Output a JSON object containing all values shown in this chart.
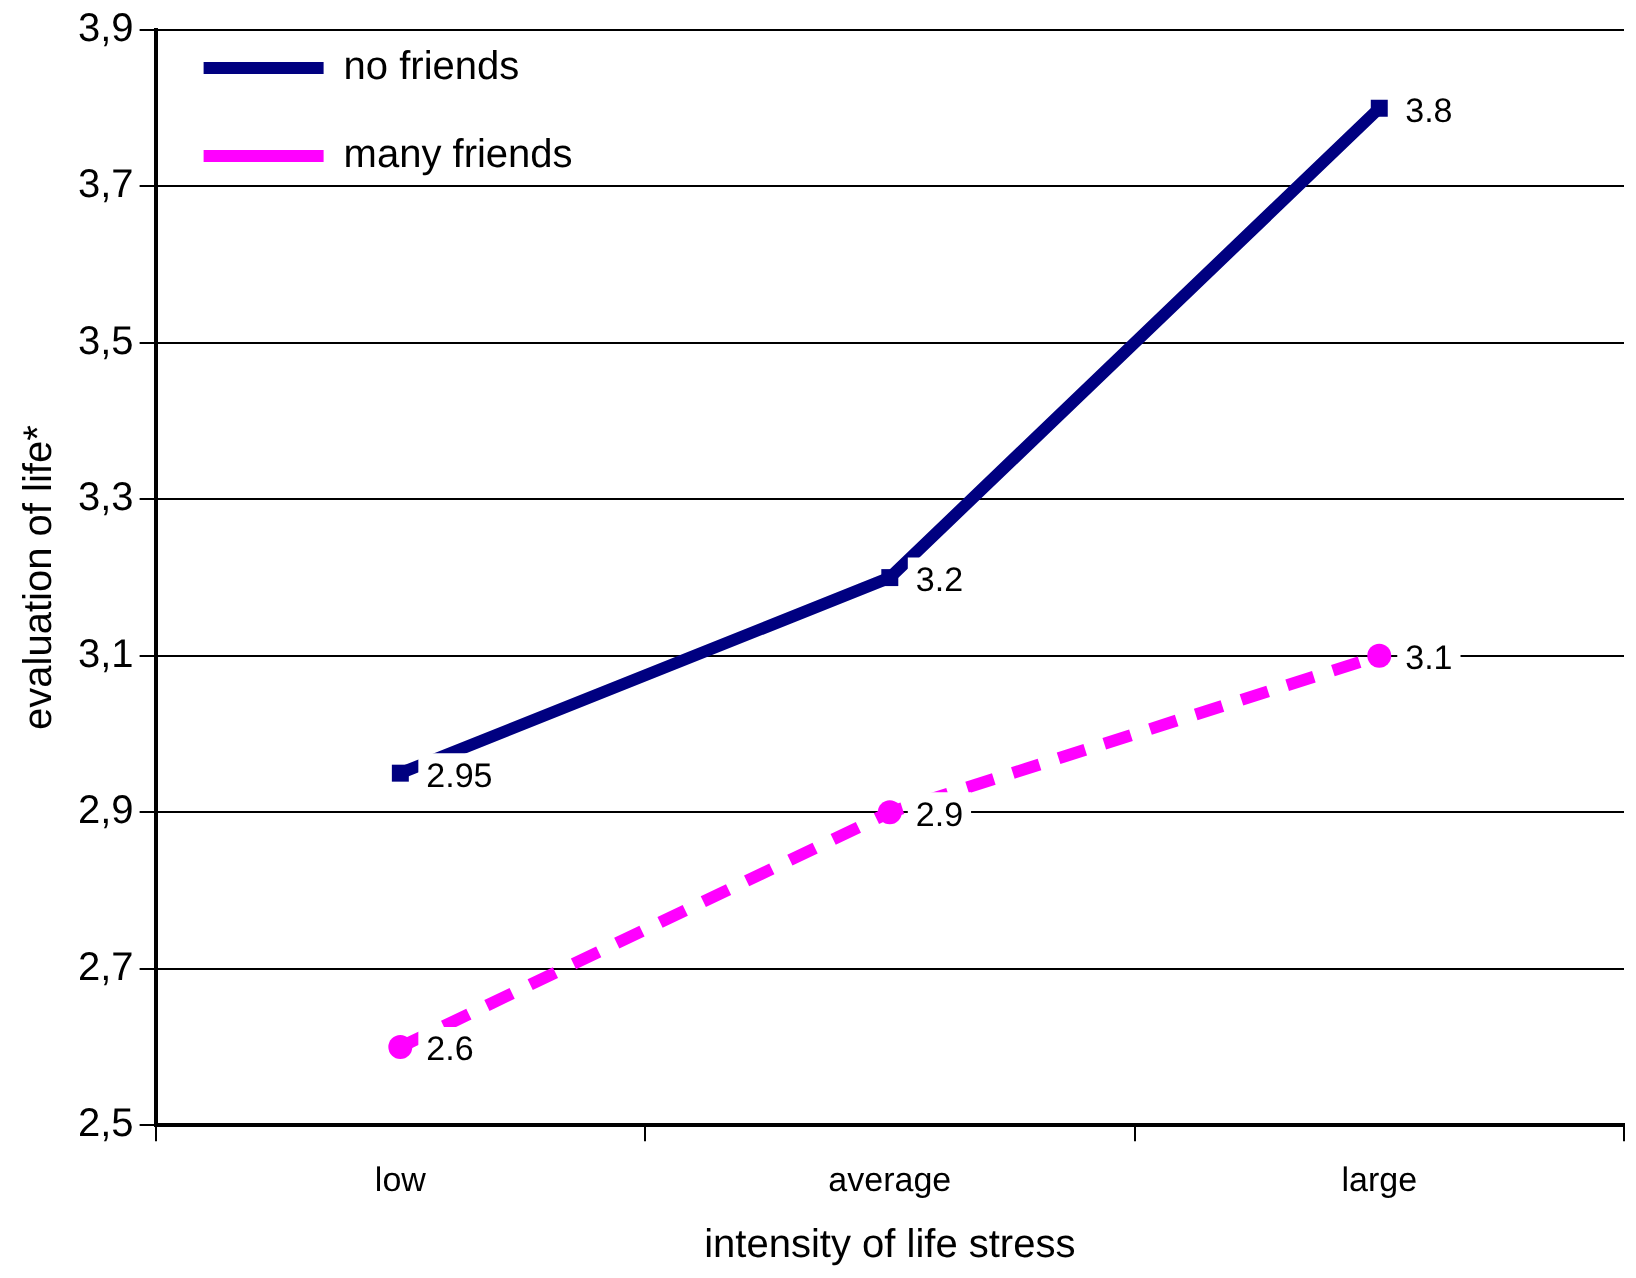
{
  "chart_data": {
    "type": "line",
    "xlabel": "intensity of life stress",
    "ylabel": "evaluation of life*",
    "categories": [
      "low",
      "average",
      "large"
    ],
    "series": [
      {
        "name": "no friends",
        "color": "#000080",
        "values": [
          2.95,
          3.2,
          3.8
        ],
        "marker": "square",
        "line_style": "solid"
      },
      {
        "name": "many friends",
        "color": "#ff00ff",
        "values": [
          2.6,
          2.9,
          3.1
        ],
        "marker": "circle",
        "line_style": "dashed"
      }
    ],
    "ylim": [
      2.5,
      3.9
    ],
    "yticks": [
      {
        "value": 2.5,
        "label": "2,5"
      },
      {
        "value": 2.7,
        "label": "2,7"
      },
      {
        "value": 2.9,
        "label": "2,9"
      },
      {
        "value": 3.1,
        "label": "3,1"
      },
      {
        "value": 3.3,
        "label": "3,3"
      },
      {
        "value": 3.5,
        "label": "3,5"
      },
      {
        "value": 3.7,
        "label": "3,7"
      },
      {
        "value": 3.9,
        "label": "3,9"
      }
    ],
    "grid": "y",
    "legend": "top left",
    "data_labels": true
  }
}
